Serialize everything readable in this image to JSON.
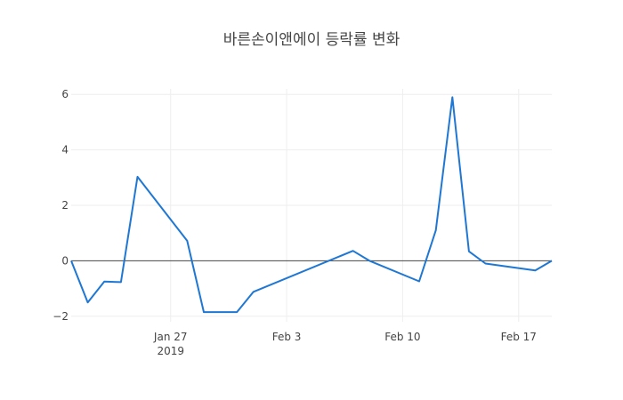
{
  "chart_data": {
    "type": "line",
    "title": "바른손이앤에이 등락률 변화",
    "xlabel": "",
    "ylabel": "",
    "x": [
      "2019-01-21",
      "2019-01-22",
      "2019-01-23",
      "2019-01-24",
      "2019-01-25",
      "2019-01-28",
      "2019-01-29",
      "2019-01-30",
      "2019-01-31",
      "2019-02-01",
      "2019-02-07",
      "2019-02-08",
      "2019-02-11",
      "2019-02-12",
      "2019-02-13",
      "2019-02-14",
      "2019-02-15",
      "2019-02-18",
      "2019-02-19"
    ],
    "series": [
      {
        "color": "#1f77d4",
        "values": [
          0.0,
          -1.5,
          -0.75,
          -0.77,
          3.03,
          0.72,
          -1.85,
          -1.85,
          -1.85,
          -1.12,
          0.36,
          0.0,
          -0.74,
          1.1,
          5.9,
          0.34,
          -0.1,
          -0.35,
          0.0
        ]
      }
    ],
    "xlim": [
      "2019-01-21",
      "2019-02-19"
    ],
    "ylim": [
      -2.2,
      6.2
    ],
    "xticks": [
      {
        "date": "2019-01-27",
        "label": "Jan 27",
        "sublabel": "2019"
      },
      {
        "date": "2019-02-03",
        "label": "Feb 3",
        "sublabel": ""
      },
      {
        "date": "2019-02-10",
        "label": "Feb 10",
        "sublabel": ""
      },
      {
        "date": "2019-02-17",
        "label": "Feb 17",
        "sublabel": ""
      }
    ],
    "yticks": [
      -2,
      0,
      2,
      4,
      6
    ],
    "ytick_labels": [
      "−2",
      "0",
      "2",
      "4",
      "6"
    ],
    "grid": true,
    "zero_line": true
  }
}
